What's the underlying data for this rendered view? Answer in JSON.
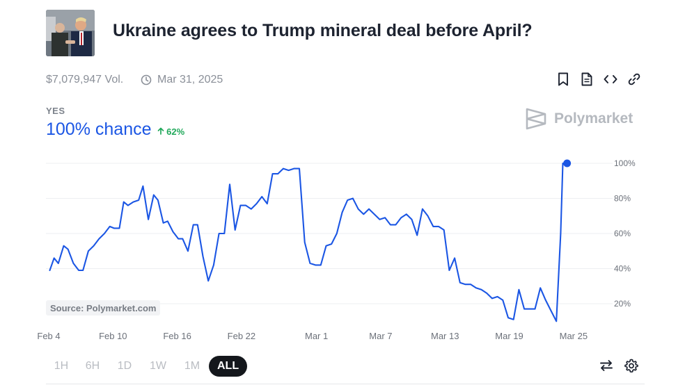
{
  "market": {
    "title": "Ukraine agrees to Trump mineral deal before April?",
    "volume": "$7,079,947 Vol.",
    "end_date": "Mar 31, 2025"
  },
  "actions": [
    {
      "name": "bookmark-icon"
    },
    {
      "name": "document-icon"
    },
    {
      "name": "embed-code-icon"
    },
    {
      "name": "link-icon"
    }
  ],
  "outcome": {
    "label": "YES",
    "chance": "100% chance",
    "change": "62%",
    "change_color": "#20a85a",
    "accent": "#1b56e4"
  },
  "brand": {
    "name": "Polymarket"
  },
  "source": "Source: Polymarket.com",
  "time_ranges": [
    {
      "label": "1H",
      "active": false
    },
    {
      "label": "6H",
      "active": false
    },
    {
      "label": "1D",
      "active": false
    },
    {
      "label": "1W",
      "active": false
    },
    {
      "label": "1M",
      "active": false
    },
    {
      "label": "ALL",
      "active": true
    }
  ],
  "tools": [
    {
      "name": "swap-arrows-icon"
    },
    {
      "name": "settings-gear-icon"
    }
  ],
  "chart_data": {
    "type": "line",
    "x_unit": "days since Feb 4, 2025",
    "xlim": [
      0,
      52
    ],
    "ylim": [
      8,
      100
    ],
    "grid": true,
    "y_ticks": [
      {
        "value": 100,
        "label": "100%"
      },
      {
        "value": 80,
        "label": "80%"
      },
      {
        "value": 60,
        "label": "60%"
      },
      {
        "value": 40,
        "label": "40%"
      },
      {
        "value": 20,
        "label": "20%"
      }
    ],
    "x_ticks": [
      {
        "value": 0,
        "label": "Feb 4"
      },
      {
        "value": 6,
        "label": "Feb 10"
      },
      {
        "value": 12,
        "label": "Feb 16"
      },
      {
        "value": 18,
        "label": "Feb 22"
      },
      {
        "value": 25,
        "label": "Mar 1"
      },
      {
        "value": 31,
        "label": "Mar 7"
      },
      {
        "value": 37,
        "label": "Mar 13"
      },
      {
        "value": 43,
        "label": "Mar 19"
      },
      {
        "value": 49,
        "label": "Mar 25"
      }
    ],
    "series": [
      {
        "name": "Yes",
        "color": "#1b56e4",
        "points": [
          [
            0.1,
            39
          ],
          [
            0.5,
            46
          ],
          [
            0.9,
            43
          ],
          [
            1.4,
            53
          ],
          [
            1.8,
            51
          ],
          [
            2.3,
            43
          ],
          [
            2.8,
            39
          ],
          [
            3.2,
            39
          ],
          [
            3.7,
            50
          ],
          [
            4.2,
            53
          ],
          [
            4.7,
            57
          ],
          [
            5.2,
            60
          ],
          [
            5.7,
            64
          ],
          [
            6.1,
            63
          ],
          [
            6.6,
            63
          ],
          [
            7.0,
            78
          ],
          [
            7.4,
            76
          ],
          [
            7.9,
            78
          ],
          [
            8.4,
            79
          ],
          [
            8.8,
            87
          ],
          [
            9.3,
            68
          ],
          [
            9.8,
            82
          ],
          [
            10.2,
            79
          ],
          [
            10.7,
            66
          ],
          [
            11.1,
            67
          ],
          [
            11.6,
            61
          ],
          [
            12.1,
            57
          ],
          [
            12.5,
            57
          ],
          [
            13.0,
            50
          ],
          [
            13.5,
            65
          ],
          [
            13.9,
            65
          ],
          [
            14.4,
            47
          ],
          [
            14.9,
            33
          ],
          [
            15.4,
            42
          ],
          [
            15.9,
            60
          ],
          [
            16.4,
            60
          ],
          [
            16.9,
            88
          ],
          [
            17.4,
            62
          ],
          [
            17.9,
            76
          ],
          [
            18.4,
            76
          ],
          [
            18.9,
            74
          ],
          [
            19.4,
            77
          ],
          [
            19.9,
            81
          ],
          [
            20.4,
            77
          ],
          [
            20.9,
            94
          ],
          [
            21.4,
            94
          ],
          [
            21.9,
            97
          ],
          [
            22.4,
            96
          ],
          [
            22.9,
            97
          ],
          [
            23.4,
            97
          ],
          [
            23.9,
            55
          ],
          [
            24.4,
            43
          ],
          [
            24.9,
            42
          ],
          [
            25.4,
            42
          ],
          [
            25.9,
            53
          ],
          [
            26.4,
            54
          ],
          [
            26.9,
            60
          ],
          [
            27.4,
            72
          ],
          [
            27.9,
            79
          ],
          [
            28.4,
            80
          ],
          [
            28.9,
            74
          ],
          [
            29.4,
            71
          ],
          [
            29.9,
            74
          ],
          [
            30.4,
            71
          ],
          [
            30.9,
            68
          ],
          [
            31.4,
            69
          ],
          [
            31.9,
            65
          ],
          [
            32.4,
            65
          ],
          [
            32.9,
            69
          ],
          [
            33.4,
            71
          ],
          [
            33.9,
            68
          ],
          [
            34.4,
            59
          ],
          [
            34.9,
            74
          ],
          [
            35.4,
            70
          ],
          [
            35.9,
            64
          ],
          [
            36.4,
            64
          ],
          [
            36.9,
            62
          ],
          [
            37.4,
            39
          ],
          [
            37.9,
            46
          ],
          [
            38.4,
            32
          ],
          [
            38.9,
            31
          ],
          [
            39.4,
            31
          ],
          [
            39.9,
            29
          ],
          [
            40.4,
            28
          ],
          [
            40.9,
            26
          ],
          [
            41.4,
            23
          ],
          [
            41.9,
            24
          ],
          [
            42.4,
            22
          ],
          [
            42.9,
            12
          ],
          [
            43.4,
            11
          ],
          [
            43.9,
            28
          ],
          [
            44.4,
            17
          ],
          [
            44.9,
            17
          ],
          [
            45.4,
            17
          ],
          [
            45.9,
            29
          ],
          [
            46.4,
            22
          ],
          [
            46.9,
            16
          ],
          [
            47.4,
            10
          ],
          [
            47.8,
            60
          ],
          [
            48.0,
            100
          ],
          [
            48.4,
            100
          ]
        ]
      }
    ]
  }
}
